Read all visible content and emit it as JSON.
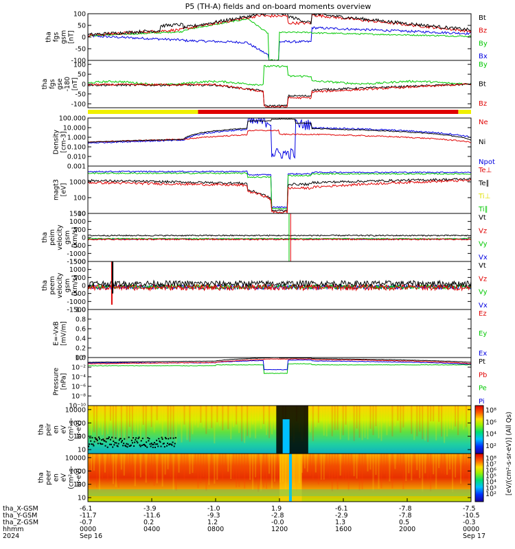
{
  "title": "P5 (TH-A) fields and on-board moments overview",
  "chart_data": [
    {
      "type": "line",
      "id": "fgs_gsm",
      "ylabel_lines": [
        "tha",
        "fgs",
        "gsm",
        "[nT]"
      ],
      "ylim": [
        -100,
        100
      ],
      "yticks": [
        {
          "v": 100,
          "t": "100"
        },
        {
          "v": 50,
          "t": "50"
        },
        {
          "v": 0,
          "t": "0"
        },
        {
          "v": -50,
          "t": "-50"
        },
        {
          "v": -100,
          "t": "-100"
        }
      ],
      "legend": [
        {
          "name": "Bt",
          "color": "#000000"
        },
        {
          "name": "Bz",
          "color": "#e00000"
        },
        {
          "name": "By",
          "color": "#00c800"
        },
        {
          "name": "Bx",
          "color": "#0000e0"
        }
      ]
    },
    {
      "type": "line",
      "id": "fgs_gse",
      "ylabel_lines": [
        "tha",
        "fgs",
        "gse",
        "-180",
        "[nT]"
      ],
      "ylim": [
        -120,
        120
      ],
      "yticks": [
        {
          "v": 100,
          "t": "100"
        },
        {
          "v": 50,
          "t": "50"
        },
        {
          "v": 0,
          "t": "0"
        },
        {
          "v": -50,
          "t": "-50"
        },
        {
          "v": -100,
          "t": "-100"
        }
      ],
      "legend": [
        {
          "name": "By",
          "color": "#00c800"
        },
        {
          "name": "Bt",
          "color": "#000000"
        },
        {
          "name": "Bz",
          "color": "#e00000"
        }
      ]
    },
    {
      "type": "line",
      "id": "density",
      "ylabel_lines": [
        "Density",
        "[cm-3]"
      ],
      "ylim": [
        "log",
        0.001,
        100
      ],
      "yticks": [
        {
          "v": 100,
          "t": "100.000"
        },
        {
          "v": 10,
          "t": "10.000"
        },
        {
          "v": 1,
          "t": "1.000"
        },
        {
          "v": 0.1,
          "t": "0.100"
        },
        {
          "v": 0.01,
          "t": "0.010"
        },
        {
          "v": 0.001,
          "t": "0.001"
        }
      ],
      "legend": [
        {
          "name": "Ne",
          "color": "#e00000"
        },
        {
          "name": "Ni",
          "color": "#000000"
        },
        {
          "name": "Npot",
          "color": "#0000e0"
        }
      ]
    },
    {
      "type": "line",
      "id": "temperature",
      "ylabel_lines": [
        "magt3",
        "[eV]"
      ],
      "ylim": [
        "log",
        10,
        10000
      ],
      "yticks": [
        {
          "v": 1000,
          "t": "1000"
        },
        {
          "v": 100,
          "t": "100"
        },
        {
          "v": 10,
          "t": "10"
        }
      ],
      "legend": [
        {
          "name": "Te⊥",
          "color": "#e00000"
        },
        {
          "name": "Te∥",
          "color": "#000000"
        },
        {
          "name": "Ti⊥",
          "color": "#e0e000"
        },
        {
          "name": "Ti∥",
          "color": "#00c800"
        }
      ]
    },
    {
      "type": "line",
      "id": "peim_velocity",
      "ylabel_lines": [
        "tha",
        "peim",
        "velocity",
        "gsm",
        "[km/s]"
      ],
      "ylim": [
        -1500,
        1500
      ],
      "yticks": [
        {
          "v": 1500,
          "t": "1500"
        },
        {
          "v": 1000,
          "t": "1000"
        },
        {
          "v": 500,
          "t": "500"
        },
        {
          "v": 0,
          "t": "0"
        },
        {
          "v": -500,
          "t": "-500"
        },
        {
          "v": -1000,
          "t": "-1000"
        },
        {
          "v": -1500,
          "t": "-1500"
        }
      ],
      "legend": [
        {
          "name": "Vt",
          "color": "#000000"
        },
        {
          "name": "Vz",
          "color": "#e00000"
        },
        {
          "name": "Vy",
          "color": "#00c800"
        },
        {
          "name": "Vx",
          "color": "#0000e0"
        }
      ]
    },
    {
      "type": "line",
      "id": "peem_velocity",
      "ylabel_lines": [
        "tha",
        "peem",
        "velocity",
        "gsm",
        "[km/s]"
      ],
      "ylim": [
        -1500,
        1500
      ],
      "yticks": [
        {
          "v": 1500,
          "t": "1500"
        },
        {
          "v": 1000,
          "t": "1000"
        },
        {
          "v": 500,
          "t": "500"
        },
        {
          "v": 0,
          "t": "0"
        },
        {
          "v": -500,
          "t": "-500"
        },
        {
          "v": -1000,
          "t": "-1000"
        },
        {
          "v": -1500,
          "t": "-1500"
        }
      ],
      "legend": [
        {
          "name": "Vt",
          "color": "#000000"
        },
        {
          "name": "Vz",
          "color": "#e00000"
        },
        {
          "name": "Vy",
          "color": "#00c800"
        },
        {
          "name": "Vx",
          "color": "#0000e0"
        }
      ]
    },
    {
      "type": "line",
      "id": "efield",
      "ylabel_lines": [
        "E=-VxB",
        "[mV/m]"
      ],
      "ylim": [
        0,
        1
      ],
      "yticks": [
        {
          "v": 1,
          "t": "1.0"
        },
        {
          "v": 0.8,
          "t": "0.8"
        },
        {
          "v": 0.6,
          "t": "0.6"
        },
        {
          "v": 0.4,
          "t": "0.4"
        },
        {
          "v": 0.2,
          "t": "0.2"
        },
        {
          "v": 0,
          "t": "0.0"
        }
      ],
      "legend": [
        {
          "name": "Ez",
          "color": "#e00000"
        },
        {
          "name": "Ey",
          "color": "#00c800"
        },
        {
          "name": "Ex",
          "color": "#0000e0"
        }
      ]
    },
    {
      "type": "line",
      "id": "pressure",
      "ylabel_lines": [
        "Pressure",
        "[nPa]"
      ],
      "ylim": [
        "log",
        1e-10,
        1
      ],
      "yticks": [
        {
          "v": 1,
          "t": "10⁰"
        },
        {
          "v": 0.01,
          "t": "10⁻²"
        },
        {
          "v": 0.0001,
          "t": "10⁻⁴"
        },
        {
          "v": 1e-06,
          "t": "10⁻⁶"
        },
        {
          "v": 1e-08,
          "t": "10⁻⁸"
        },
        {
          "v": 1e-10,
          "t": "10⁻¹⁰"
        }
      ],
      "legend": [
        {
          "name": "Pt",
          "color": "#000000"
        },
        {
          "name": "Pb",
          "color": "#e00000"
        },
        {
          "name": "Pe",
          "color": "#00c800"
        },
        {
          "name": "Pi",
          "color": "#0000e0"
        }
      ]
    },
    {
      "type": "heatmap",
      "id": "peir_spectrogram",
      "ylabel_lines": [
        "tha",
        "peir",
        "en",
        "eV",
        "(cm²-s-",
        "sr-eV)"
      ],
      "ylim": [
        "log",
        5,
        20000
      ],
      "yticks": [
        {
          "v": 10000,
          "t": "10000"
        },
        {
          "v": 1000,
          "t": "1000"
        },
        {
          "v": 100,
          "t": "100"
        },
        {
          "v": 10,
          "t": "10"
        }
      ],
      "colorbar_ticks": [
        "10⁸",
        "10⁶",
        "10⁴",
        "10²"
      ]
    },
    {
      "type": "heatmap",
      "id": "peer_spectrogram",
      "ylabel_lines": [
        "tha",
        "peer",
        "en",
        "eV",
        "(cm²-s-",
        "sr-eV)"
      ],
      "ylim": [
        "log",
        5,
        20000
      ],
      "yticks": [
        {
          "v": 10000,
          "t": "10000"
        },
        {
          "v": 1000,
          "t": "1000"
        },
        {
          "v": 100,
          "t": "100"
        },
        {
          "v": 10,
          "t": "10"
        }
      ],
      "colorbar_ticks": [
        "10⁸",
        "10⁷",
        "10⁶",
        "10⁵",
        "10⁴",
        "10³",
        "10²"
      ]
    }
  ],
  "colorbar_label": "[eV/(cm²-s-sr-eV)] (All Qs)",
  "x_axis": {
    "row_labels": [
      "tha_X-GSM",
      "tha_Y-GSM",
      "tha_Z-GSM",
      "hhmm",
      "2024"
    ],
    "ticks": [
      {
        "t": 0,
        "vals": [
          "-6.1",
          "-11.7",
          "-0.7",
          "0000",
          "Sep 16"
        ]
      },
      {
        "t": 4,
        "vals": [
          "-3.9",
          "-11.6",
          "0.2",
          "0400",
          ""
        ]
      },
      {
        "t": 8,
        "vals": [
          "-1.0",
          "-9.3",
          "1.2",
          "0800",
          ""
        ]
      },
      {
        "t": 12,
        "vals": [
          "1.9",
          "-2.8",
          "-0.0",
          "1200",
          ""
        ]
      },
      {
        "t": 16,
        "vals": [
          "-6.1",
          "-2.9",
          "1.3",
          "1600",
          ""
        ]
      },
      {
        "t": 20,
        "vals": [
          "-7.8",
          "-7.8",
          "0.5",
          "2000",
          ""
        ]
      },
      {
        "t": 24,
        "vals": [
          "-7.5",
          "-10.5",
          "-0.3",
          "0000",
          "Sep 17"
        ]
      }
    ]
  },
  "colors": {
    "yellow": "#f0f000",
    "red": "#e00000",
    "black": "#000000",
    "green": "#00c800",
    "blue": "#0000e0"
  }
}
